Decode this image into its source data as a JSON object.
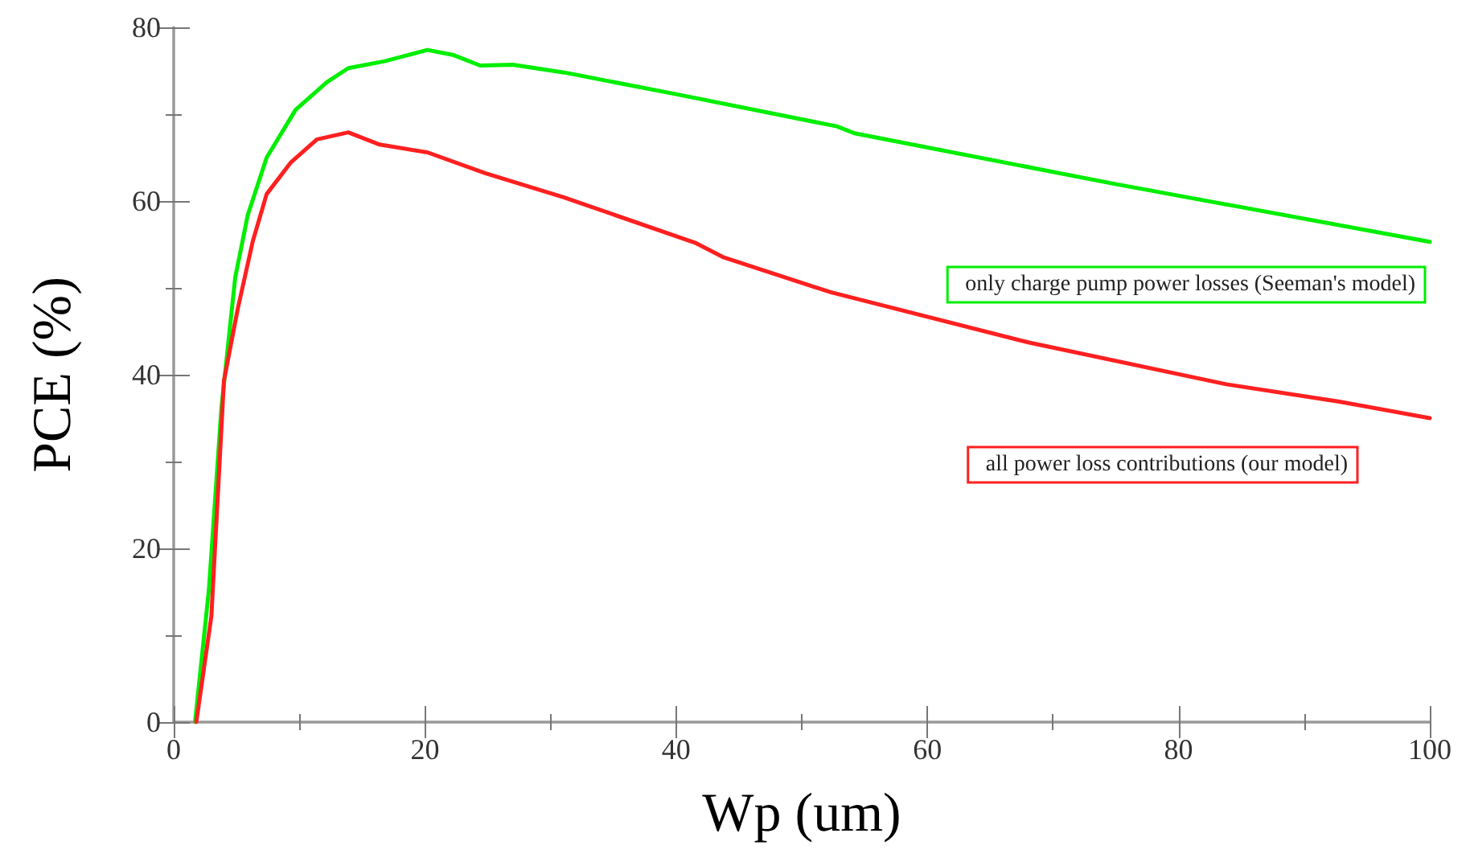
{
  "chart_data": {
    "type": "line",
    "xlabel": "Wp (um)",
    "ylabel": "PCE (%)",
    "xlim": [
      0,
      100
    ],
    "xticks": [
      0,
      20,
      40,
      60,
      80,
      100
    ],
    "ylim": [
      0,
      80
    ],
    "yticks": [
      0,
      20,
      40,
      60,
      80
    ],
    "grid": false,
    "legend": "right",
    "marker": "none",
    "line_style": "solid",
    "series": [
      {
        "name": "only charge pump power losses (Seeman's model)",
        "color": "#00ee00",
        "x": [
          1.7,
          2.8,
          3.8,
          4.9,
          5.9,
          7.4,
          9.7,
          12.2,
          13.9,
          16.8,
          20.2,
          22.3,
          24.4,
          27,
          31.1,
          40,
          52.8,
          54.2,
          74.8,
          100
        ],
        "values": [
          0,
          15.2,
          36.2,
          51.2,
          58.4,
          65,
          70.5,
          73.7,
          75.3,
          76.1,
          77.4,
          76.8,
          75.6,
          75.7,
          74.8,
          72.3,
          68.6,
          67.8,
          62,
          55.3
        ]
      },
      {
        "name": "all power loss contributions (our model)",
        "color": "#ff2020",
        "x": [
          1.8,
          3,
          4,
          5.1,
          6.3,
          7.4,
          9.3,
          11.4,
          13.9,
          16.4,
          20.2,
          24.8,
          31.1,
          41.5,
          43.8,
          52.3,
          68.1,
          83.8,
          92.8,
          100
        ],
        "values": [
          0,
          12.2,
          39.3,
          47.6,
          55.4,
          60.8,
          64.4,
          67.1,
          67.9,
          66.5,
          65.6,
          63.2,
          60.4,
          55.2,
          53.5,
          49.5,
          43.7,
          38.9,
          36.9,
          35
        ]
      }
    ]
  }
}
